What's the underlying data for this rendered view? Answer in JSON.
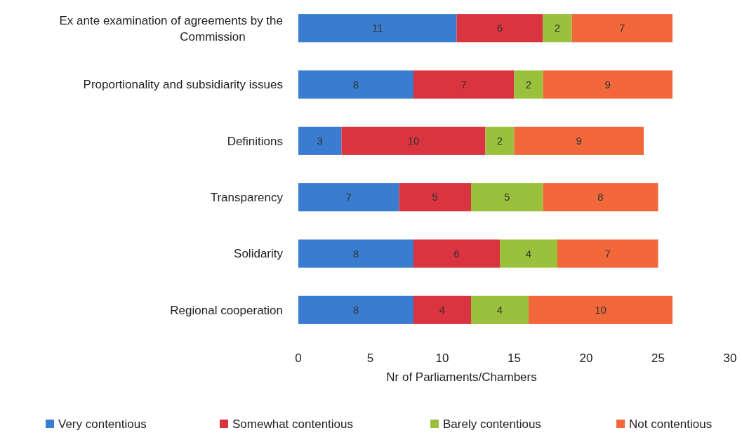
{
  "chart_data": {
    "type": "bar",
    "orientation": "horizontal",
    "stacked": true,
    "xlabel": "Nr of Parliaments/Chambers",
    "categories": [
      "Ex ante examination of agreements by the Commission",
      "Proportionality and subsidiarity issues",
      "Definitions",
      "Transparency",
      "Solidarity",
      "Regional cooperation"
    ],
    "series": [
      {
        "name": "Very contentious",
        "color": "#3a7dd0",
        "values": [
          11,
          8,
          3,
          7,
          8,
          8
        ]
      },
      {
        "name": "Somewhat contentious",
        "color": "#d9343f",
        "values": [
          6,
          7,
          10,
          5,
          6,
          4
        ]
      },
      {
        "name": "Barely contentious",
        "color": "#9bc13c",
        "values": [
          2,
          2,
          2,
          5,
          4,
          4
        ]
      },
      {
        "name": "Not contentious",
        "color": "#f2683a",
        "values": [
          7,
          9,
          9,
          8,
          7,
          10
        ]
      }
    ],
    "xlim": [
      0,
      30
    ],
    "xticks": [
      0,
      5,
      10,
      15,
      20,
      25,
      30
    ],
    "data_labels": true,
    "legend": "bottom",
    "grid": false
  }
}
